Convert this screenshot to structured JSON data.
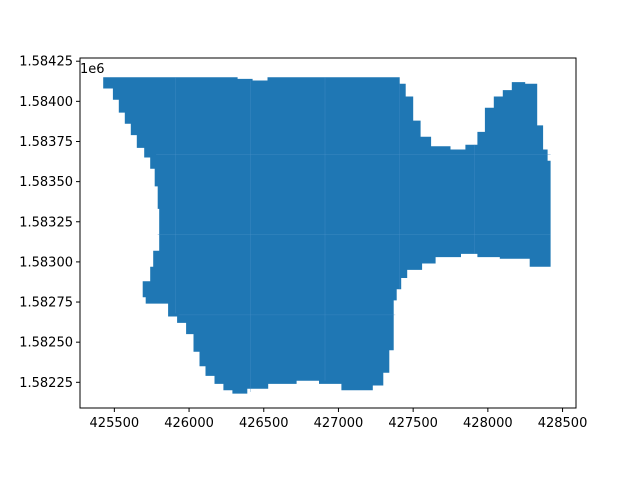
{
  "chart_data": {
    "type": "map-polygon",
    "title": "",
    "xlabel": "",
    "ylabel": "",
    "y_offset_label": "1e6",
    "xlim": [
      425270,
      428590
    ],
    "ylim": [
      1582090,
      1584270
    ],
    "x_ticks": [
      425500,
      426000,
      426500,
      427000,
      427500,
      428000,
      428500
    ],
    "x_tick_labels": [
      "425500",
      "426000",
      "426500",
      "427000",
      "427500",
      "428000",
      "428500"
    ],
    "y_ticks": [
      1582250,
      1582500,
      1582750,
      1583000,
      1583250,
      1583500,
      1583750,
      1584000,
      1584250
    ],
    "y_tick_labels": [
      "1.58225",
      "1.58250",
      "1.58275",
      "1.58300",
      "1.58325",
      "1.58350",
      "1.58375",
      "1.58400",
      "1.58425"
    ],
    "fill_color": "#1f77b4",
    "polygon": [
      [
        425425,
        1584150
      ],
      [
        426325,
        1584150
      ],
      [
        426325,
        1584140
      ],
      [
        426425,
        1584140
      ],
      [
        426425,
        1584130
      ],
      [
        426525,
        1584130
      ],
      [
        426525,
        1584150
      ],
      [
        427410,
        1584150
      ],
      [
        427410,
        1584110
      ],
      [
        427450,
        1584110
      ],
      [
        427450,
        1584030
      ],
      [
        427500,
        1584030
      ],
      [
        427500,
        1583880
      ],
      [
        427550,
        1583880
      ],
      [
        427550,
        1583780
      ],
      [
        427620,
        1583780
      ],
      [
        427620,
        1583720
      ],
      [
        427750,
        1583720
      ],
      [
        427750,
        1583700
      ],
      [
        427850,
        1583700
      ],
      [
        427850,
        1583730
      ],
      [
        427930,
        1583730
      ],
      [
        427930,
        1583810
      ],
      [
        427980,
        1583810
      ],
      [
        427980,
        1583960
      ],
      [
        428040,
        1583960
      ],
      [
        428040,
        1584030
      ],
      [
        428100,
        1584030
      ],
      [
        428100,
        1584070
      ],
      [
        428160,
        1584070
      ],
      [
        428160,
        1584120
      ],
      [
        428250,
        1584120
      ],
      [
        428250,
        1584110
      ],
      [
        428330,
        1584110
      ],
      [
        428330,
        1583850
      ],
      [
        428370,
        1583850
      ],
      [
        428370,
        1583700
      ],
      [
        428400,
        1583700
      ],
      [
        428400,
        1583630
      ],
      [
        428420,
        1583630
      ],
      [
        428420,
        1582970
      ],
      [
        428280,
        1582970
      ],
      [
        428280,
        1583020
      ],
      [
        428080,
        1583020
      ],
      [
        428080,
        1583030
      ],
      [
        427930,
        1583030
      ],
      [
        427930,
        1583050
      ],
      [
        427820,
        1583050
      ],
      [
        427820,
        1583030
      ],
      [
        427650,
        1583030
      ],
      [
        427650,
        1582990
      ],
      [
        427560,
        1582990
      ],
      [
        427560,
        1582950
      ],
      [
        427460,
        1582950
      ],
      [
        427460,
        1582900
      ],
      [
        427420,
        1582900
      ],
      [
        427420,
        1582830
      ],
      [
        427390,
        1582830
      ],
      [
        427390,
        1582760
      ],
      [
        427370,
        1582760
      ],
      [
        427370,
        1582450
      ],
      [
        427340,
        1582450
      ],
      [
        427340,
        1582310
      ],
      [
        427300,
        1582310
      ],
      [
        427300,
        1582230
      ],
      [
        427230,
        1582230
      ],
      [
        427230,
        1582200
      ],
      [
        427020,
        1582200
      ],
      [
        427020,
        1582240
      ],
      [
        426870,
        1582240
      ],
      [
        426870,
        1582260
      ],
      [
        426720,
        1582260
      ],
      [
        426720,
        1582240
      ],
      [
        426530,
        1582240
      ],
      [
        426530,
        1582210
      ],
      [
        426390,
        1582210
      ],
      [
        426390,
        1582180
      ],
      [
        426290,
        1582180
      ],
      [
        426290,
        1582200
      ],
      [
        426230,
        1582200
      ],
      [
        426230,
        1582240
      ],
      [
        426170,
        1582240
      ],
      [
        426170,
        1582290
      ],
      [
        426110,
        1582290
      ],
      [
        426110,
        1582350
      ],
      [
        426070,
        1582350
      ],
      [
        426070,
        1582440
      ],
      [
        426030,
        1582440
      ],
      [
        426030,
        1582550
      ],
      [
        425980,
        1582550
      ],
      [
        425980,
        1582620
      ],
      [
        425920,
        1582620
      ],
      [
        425920,
        1582660
      ],
      [
        425860,
        1582660
      ],
      [
        425860,
        1582740
      ],
      [
        425710,
        1582740
      ],
      [
        425710,
        1582780
      ],
      [
        425690,
        1582780
      ],
      [
        425690,
        1582880
      ],
      [
        425740,
        1582880
      ],
      [
        425740,
        1582970
      ],
      [
        425760,
        1582970
      ],
      [
        425760,
        1583070
      ],
      [
        425800,
        1583070
      ],
      [
        425800,
        1583330
      ],
      [
        425790,
        1583330
      ],
      [
        425790,
        1583470
      ],
      [
        425770,
        1583470
      ],
      [
        425770,
        1583580
      ],
      [
        425740,
        1583580
      ],
      [
        425740,
        1583650
      ],
      [
        425700,
        1583650
      ],
      [
        425700,
        1583710
      ],
      [
        425650,
        1583710
      ],
      [
        425650,
        1583790
      ],
      [
        425610,
        1583790
      ],
      [
        425610,
        1583860
      ],
      [
        425570,
        1583860
      ],
      [
        425570,
        1583930
      ],
      [
        425530,
        1583930
      ],
      [
        425530,
        1584010
      ],
      [
        425490,
        1584010
      ],
      [
        425490,
        1584080
      ],
      [
        425425,
        1584080
      ]
    ],
    "inner_lines": [
      [
        [
          425910,
          1584150
        ],
        [
          425910,
          1582680
        ]
      ],
      [
        [
          426410,
          1584130
        ],
        [
          426410,
          1582190
        ]
      ],
      [
        [
          426910,
          1584150
        ],
        [
          426910,
          1582260
        ]
      ],
      [
        [
          427410,
          1584110
        ],
        [
          427410,
          1582830
        ]
      ],
      [
        [
          427910,
          1583730
        ],
        [
          427910,
          1583050
        ]
      ],
      [
        [
          425780,
          1583670
        ],
        [
          428420,
          1583670
        ]
      ],
      [
        [
          425790,
          1583170
        ],
        [
          428420,
          1583170
        ]
      ],
      [
        [
          425930,
          1582670
        ],
        [
          427380,
          1582670
        ]
      ]
    ]
  }
}
